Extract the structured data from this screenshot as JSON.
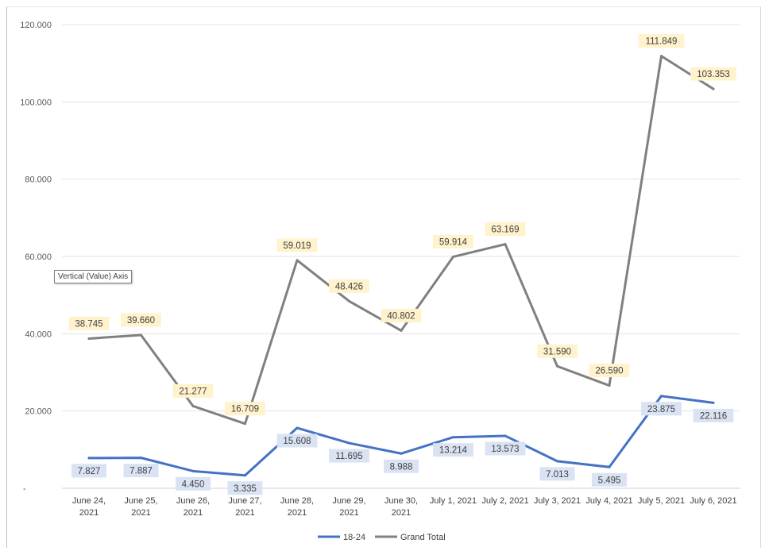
{
  "chart_data": {
    "type": "line",
    "title": "",
    "xlabel": "",
    "ylabel": "",
    "categories": [
      [
        "June 24,",
        "2021"
      ],
      [
        "June 25,",
        "2021"
      ],
      [
        "June 26,",
        "2021"
      ],
      [
        "June 27,",
        "2021"
      ],
      [
        "June 28,",
        "2021"
      ],
      [
        "June 29,",
        "2021"
      ],
      [
        "June 30,",
        "2021"
      ],
      [
        "July 1, 2021"
      ],
      [
        "July 2, 2021"
      ],
      [
        "July 3, 2021"
      ],
      [
        "July 4, 2021"
      ],
      [
        "July 5, 2021"
      ],
      [
        "July 6, 2021"
      ]
    ],
    "ylim": [
      0,
      120000
    ],
    "yticks": [
      {
        "value": 0,
        "label": "-"
      },
      {
        "value": 20000,
        "label": "20.000"
      },
      {
        "value": 40000,
        "label": "40.000"
      },
      {
        "value": 60000,
        "label": "60.000"
      },
      {
        "value": 80000,
        "label": "80.000"
      },
      {
        "value": 100000,
        "label": "100.000"
      },
      {
        "value": 120000,
        "label": "120.000"
      }
    ],
    "grid": true,
    "legend_position": "bottom",
    "series": [
      {
        "name": "18-24",
        "color": "#4472C4",
        "label_bg": "#DAE3F3",
        "label_position": "below",
        "values": [
          7827,
          7887,
          4450,
          3335,
          15608,
          11695,
          8988,
          13214,
          13573,
          7013,
          5495,
          23875,
          22116
        ],
        "labels": [
          "7.827",
          "7.887",
          "4.450",
          "3.335",
          "15.608",
          "11.695",
          "8.988",
          "13.214",
          "13.573",
          "7.013",
          "5.495",
          "23.875",
          "22.116"
        ]
      },
      {
        "name": "Grand Total",
        "color": "#808080",
        "label_bg": "#FFF2CC",
        "label_position": "above",
        "values": [
          38745,
          39660,
          21277,
          16709,
          59019,
          48426,
          40802,
          59914,
          63169,
          31590,
          26590,
          111849,
          103353
        ],
        "labels": [
          "38.745",
          "39.660",
          "21.277",
          "16.709",
          "59.019",
          "48.426",
          "40.802",
          "59.914",
          "63.169",
          "31.590",
          "26.590",
          "111.849",
          "103.353"
        ]
      }
    ]
  },
  "tooltip": {
    "text": "Vertical (Value) Axis"
  }
}
